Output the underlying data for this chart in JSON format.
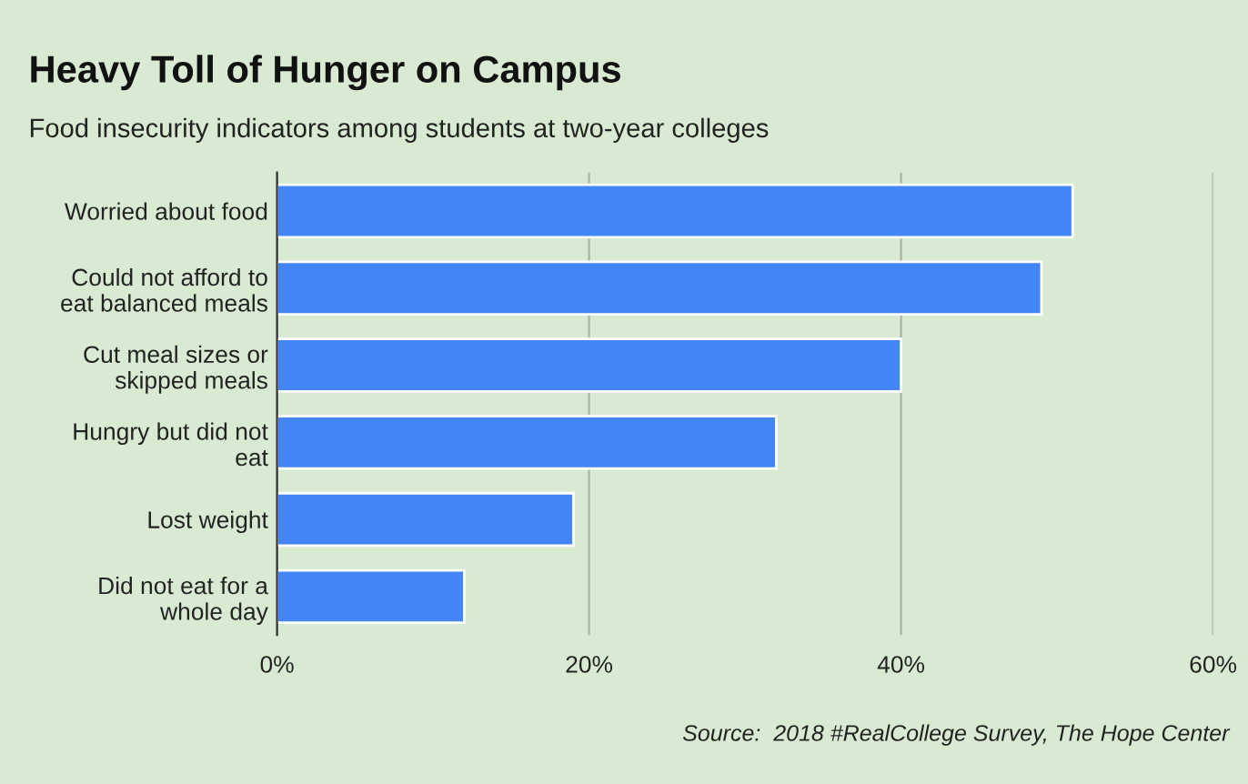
{
  "chart_data": {
    "type": "bar",
    "orientation": "horizontal",
    "title": "Heavy Toll of Hunger on Campus",
    "subtitle": "Food insecurity indicators among students at two-year colleges",
    "categories": [
      "Worried about food",
      "Could not afford to\neat balanced meals",
      "Cut meal sizes or\nskipped meals",
      "Hungry but did not\neat",
      "Lost weight",
      "Did not eat for a\nwhole day"
    ],
    "values": [
      51,
      49,
      40,
      32,
      19,
      12
    ],
    "color": "#4285f4",
    "xlim": [
      0,
      60
    ],
    "xticks": [
      {
        "value": 0,
        "label": "0%"
      },
      {
        "value": 20,
        "label": "20%"
      },
      {
        "value": 40,
        "label": "40%"
      },
      {
        "value": 60,
        "label": "60%"
      }
    ],
    "grid": "x",
    "annotations": [
      "Source:  2018 #RealCollege Survey, The Hope Center"
    ]
  }
}
